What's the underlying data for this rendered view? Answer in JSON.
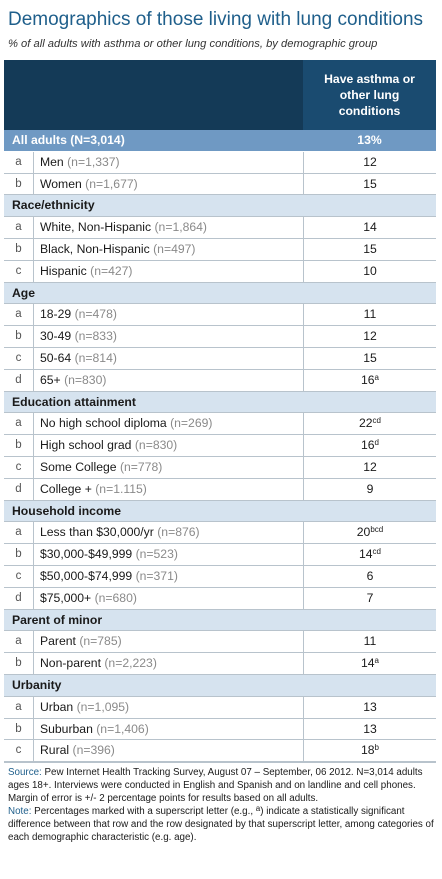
{
  "title": "Demographics of those living with lung conditions",
  "subtitle": "% of all adults with asthma or other lung conditions, by demographic group",
  "column_header": "Have asthma or other lung conditions",
  "all_adults": {
    "label": "All adults (N=3,014)",
    "value": "13%"
  },
  "sections": [
    {
      "heading": null,
      "rows": [
        {
          "letter": "a",
          "label": "Men",
          "n": "(n=1,337)",
          "value": "12",
          "sup": ""
        },
        {
          "letter": "b",
          "label": "Women",
          "n": "(n=1,677)",
          "value": "15",
          "sup": ""
        }
      ]
    },
    {
      "heading": "Race/ethnicity",
      "rows": [
        {
          "letter": "a",
          "label": "White, Non-Hispanic",
          "n": "(n=1,864)",
          "value": "14",
          "sup": ""
        },
        {
          "letter": "b",
          "label": "Black, Non-Hispanic",
          "n": "(n=497)",
          "value": "15",
          "sup": ""
        },
        {
          "letter": "c",
          "label": "Hispanic",
          "n": "(n=427)",
          "value": "10",
          "sup": ""
        }
      ]
    },
    {
      "heading": "Age",
      "rows": [
        {
          "letter": "a",
          "label": "18-29",
          "n": "(n=478)",
          "value": "11",
          "sup": ""
        },
        {
          "letter": "b",
          "label": "30-49",
          "n": "(n=833)",
          "value": "12",
          "sup": ""
        },
        {
          "letter": "c",
          "label": "50-64",
          "n": "(n=814)",
          "value": "15",
          "sup": ""
        },
        {
          "letter": "d",
          "label": "65+",
          "n": "(n=830)",
          "value": "16",
          "sup": "a"
        }
      ]
    },
    {
      "heading": "Education attainment",
      "rows": [
        {
          "letter": "a",
          "label": "No high school diploma",
          "n": "(n=269)",
          "value": "22",
          "sup": "cd"
        },
        {
          "letter": "b",
          "label": "High school grad",
          "n": "(n=830)",
          "value": "16",
          "sup": "d"
        },
        {
          "letter": "c",
          "label": "Some College",
          "n": "(n=778)",
          "value": "12",
          "sup": ""
        },
        {
          "letter": "d",
          "label": "College +",
          "n": "(n=1.115)",
          "value": "9",
          "sup": ""
        }
      ]
    },
    {
      "heading": "Household income",
      "rows": [
        {
          "letter": "a",
          "label": "Less than $30,000/yr",
          "n": "(n=876)",
          "value": "20",
          "sup": "bcd"
        },
        {
          "letter": "b",
          "label": "$30,000-$49,999",
          "n": "(n=523)",
          "value": "14",
          "sup": "cd"
        },
        {
          "letter": "c",
          "label": "$50,000-$74,999",
          "n": "(n=371)",
          "value": "6",
          "sup": ""
        },
        {
          "letter": "d",
          "label": "$75,000+",
          "n": "(n=680)",
          "value": "7",
          "sup": ""
        }
      ]
    },
    {
      "heading": "Parent of minor",
      "rows": [
        {
          "letter": "a",
          "label": "Parent",
          "n": "(n=785)",
          "value": "11",
          "sup": ""
        },
        {
          "letter": "b",
          "label": "Non-parent",
          "n": "(n=2,223)",
          "value": "14",
          "sup": "a"
        }
      ]
    },
    {
      "heading": "Urbanity",
      "rows": [
        {
          "letter": "a",
          "label": "Urban",
          "n": "(n=1,095)",
          "value": "13",
          "sup": ""
        },
        {
          "letter": "b",
          "label": "Suburban",
          "n": "(n=1,406)",
          "value": "13",
          "sup": ""
        },
        {
          "letter": "c",
          "label": "Rural",
          "n": "(n=396)",
          "value": "18",
          "sup": "b"
        }
      ]
    }
  ],
  "footer": {
    "source_label": "Source:",
    "source_text": "Pew Internet Health Tracking Survey, August 07 – September, 06 2012. N=3,014 adults ages 18+. Interviews were conducted in English and Spanish and on landline and cell phones. Margin of error is +/- 2 percentage points for results based on all adults.",
    "note_label": "Note:",
    "note_text_1": "Percentages marked with a superscript letter (e.g., ",
    "note_sup": "a",
    "note_text_2": ") indicate a statistically significant difference between that row and the row designated by that superscript letter, among categories of each demographic characteristic (e.g. age).",
    "colors": {
      "title": "#1f5f8b",
      "header": "#143a57",
      "header_col": "#1a4b70",
      "all_row": "#6f99c3",
      "section_row": "#d6e3ef"
    }
  }
}
